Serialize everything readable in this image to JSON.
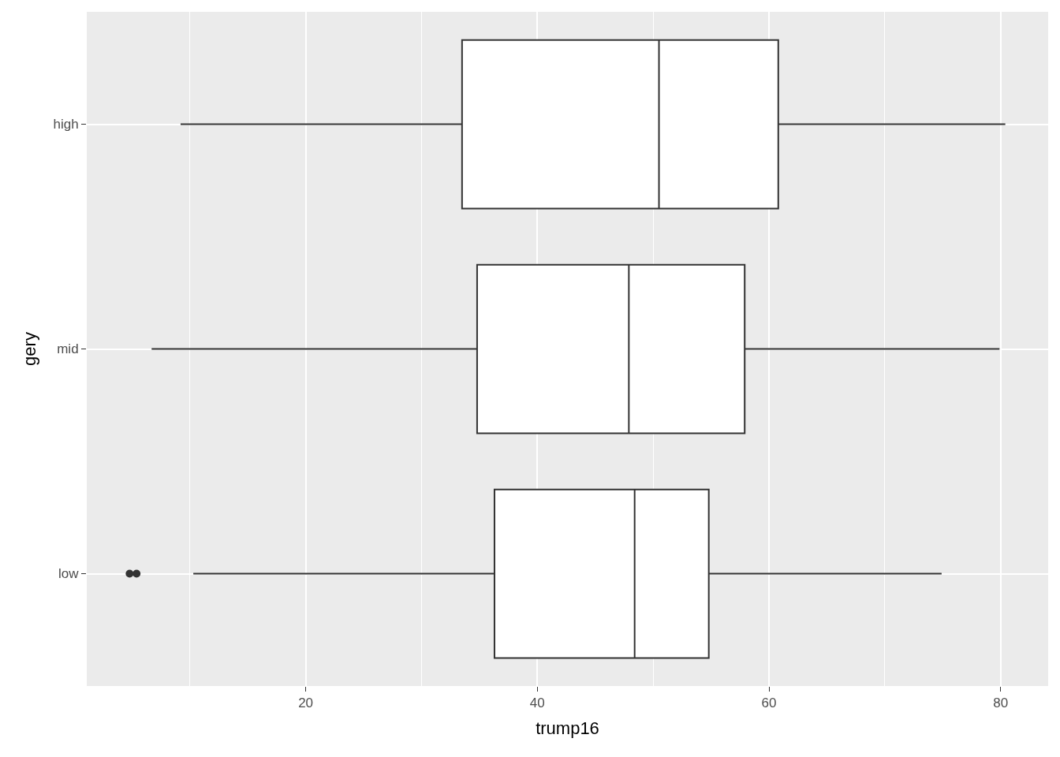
{
  "chart_data": {
    "type": "box",
    "orientation": "horizontal",
    "xlabel": "trump16",
    "ylabel": "gery",
    "categories": [
      "high",
      "mid",
      "low"
    ],
    "boxes": [
      {
        "low": 9.2,
        "q1": 33.5,
        "median": 50.5,
        "q3": 60.8,
        "high": 80.4
      },
      {
        "low": 6.7,
        "q1": 34.8,
        "median": 47.9,
        "q3": 57.9,
        "high": 79.9
      },
      {
        "low": 10.3,
        "q1": 36.3,
        "median": 48.4,
        "q3": 54.8,
        "high": 74.9,
        "outliers": [
          4.8,
          5.4
        ]
      }
    ],
    "color": "#333333",
    "xlim": [
      1.1,
      84.1
    ],
    "xticks": [
      20,
      40,
      60,
      80
    ],
    "grid": true
  }
}
